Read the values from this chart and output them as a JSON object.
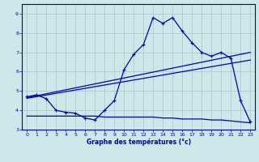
{
  "xlabel": "Graphe des températures (°c)",
  "bg_color": "#cce8e8",
  "grid_color": "#aacccc",
  "line_color": "#0000bb",
  "hours": [
    0,
    1,
    2,
    3,
    4,
    5,
    6,
    7,
    8,
    9,
    10,
    11,
    12,
    13,
    14,
    15,
    16,
    17,
    18,
    19,
    20,
    21,
    22,
    23
  ],
  "temp_main": [
    4.7,
    4.8,
    4.6,
    4.0,
    3.9,
    3.85,
    3.6,
    3.5,
    4.0,
    4.5,
    6.1,
    6.9,
    7.4,
    8.8,
    8.5,
    8.8,
    8.1,
    7.5,
    7.0,
    6.8,
    7.0,
    6.7,
    4.5,
    3.4
  ],
  "temp_flat": [
    3.7,
    3.7,
    3.7,
    3.7,
    3.7,
    3.7,
    3.7,
    3.7,
    3.65,
    3.65,
    3.65,
    3.65,
    3.65,
    3.65,
    3.6,
    3.6,
    3.55,
    3.55,
    3.55,
    3.5,
    3.5,
    3.45,
    3.4,
    3.35
  ],
  "ylim": [
    3.0,
    9.5
  ],
  "xlim": [
    -0.5,
    23.5
  ],
  "yticks": [
    3,
    4,
    5,
    6,
    7,
    8,
    9
  ],
  "xticks": [
    0,
    1,
    2,
    3,
    4,
    5,
    6,
    7,
    8,
    9,
    10,
    11,
    12,
    13,
    14,
    15,
    16,
    17,
    18,
    19,
    20,
    21,
    22,
    23
  ]
}
